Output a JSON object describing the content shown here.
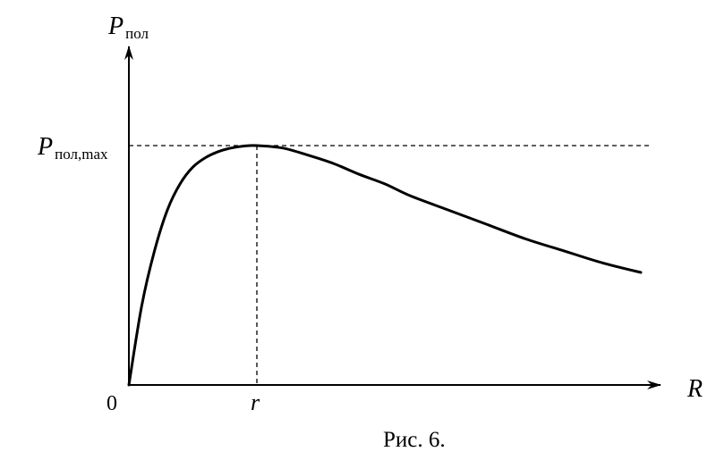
{
  "chart_data": {
    "type": "line",
    "y_axis": {
      "symbol": "P",
      "subscript": "пол"
    },
    "x_axis": {
      "symbol": "R"
    },
    "origin_label": "0",
    "max_tick": {
      "symbol": "P",
      "subscript": "пол,max"
    },
    "x_tick": {
      "symbol": "r"
    },
    "caption": "Рис. 6.",
    "r_value": 1,
    "ylim": [
      0,
      1.6
    ],
    "xlim": [
      0,
      4.3
    ],
    "series": [
      {
        "x": [
          0,
          0.1,
          0.2,
          0.3,
          0.4,
          0.5,
          0.6,
          0.7,
          0.8,
          0.9,
          1.0,
          1.2,
          1.4,
          1.6,
          1.8,
          2.0,
          2.2,
          2.5,
          2.8,
          3.1,
          3.4,
          3.7,
          4.0
        ],
        "y": [
          0,
          0.33,
          0.56,
          0.73,
          0.84,
          0.91,
          0.95,
          0.975,
          0.99,
          0.998,
          1.0,
          0.99,
          0.96,
          0.925,
          0.88,
          0.84,
          0.79,
          0.73,
          0.67,
          0.61,
          0.56,
          0.51,
          0.47
        ]
      }
    ],
    "grid": false
  }
}
